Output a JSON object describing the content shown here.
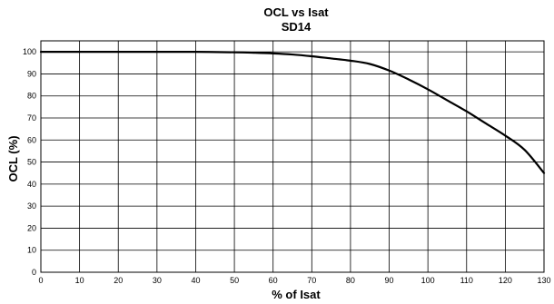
{
  "chart_data": {
    "type": "line",
    "title": "OCL vs Isat",
    "subtitle": "SD14",
    "xlabel": "% of Isat",
    "ylabel": "OCL (%)",
    "xlim": [
      0,
      130
    ],
    "ylim": [
      0,
      105
    ],
    "xticks": [
      "0",
      "10",
      "20",
      "30",
      "40",
      "50",
      "60",
      "70",
      "80",
      "90",
      "100",
      "110",
      "120",
      "130"
    ],
    "yticks": [
      "0",
      "10",
      "20",
      "30",
      "40",
      "50",
      "60",
      "70",
      "80",
      "90",
      "100"
    ],
    "grid": true,
    "series": [
      {
        "x": [
          0,
          10,
          20,
          30,
          40,
          50,
          55,
          60,
          65,
          70,
          75,
          80,
          85,
          90,
          95,
          100,
          105,
          110,
          115,
          120,
          125,
          130
        ],
        "y": [
          100,
          100,
          100,
          100,
          100,
          99.8,
          99.6,
          99.3,
          98.8,
          98,
          97,
          96,
          94.5,
          91.5,
          87.5,
          83,
          78,
          73,
          67.5,
          62,
          55.5,
          45
        ]
      }
    ],
    "line_color": "#000000"
  }
}
